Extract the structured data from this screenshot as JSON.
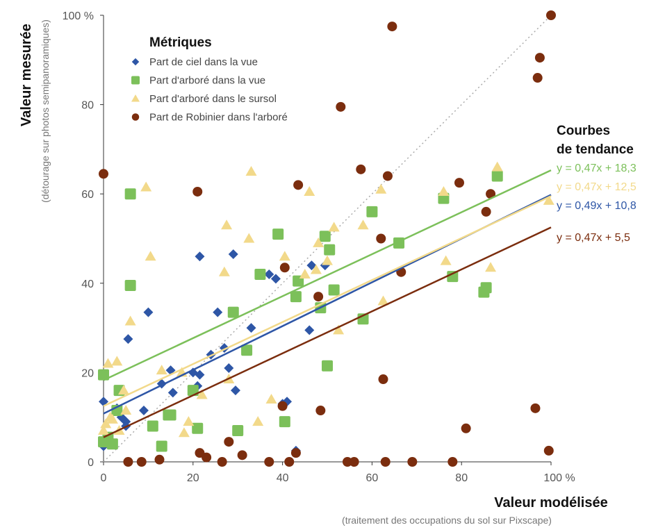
{
  "chart_data": {
    "type": "scatter",
    "xlabel": "Valeur modélisée",
    "xlabel_sub": "(traitement des occupations du sol sur Pixscape)",
    "ylabel": "Valeur mesurée",
    "ylabel_sub": "(détourage sur photos semipanoramiques)",
    "xlim": [
      0,
      100
    ],
    "ylim": [
      0,
      100
    ],
    "x_ticks": [
      "0",
      "20",
      "40",
      "60",
      "80",
      "100 %"
    ],
    "y_ticks": [
      "0",
      "20",
      "40",
      "60",
      "80",
      "100 %"
    ],
    "grid": false,
    "identity_line": true,
    "legend": {
      "title": "Métriques",
      "placement": "top-left"
    },
    "trend_title": [
      "Courbes",
      "de tendance"
    ],
    "series": [
      {
        "name": "Part de ciel dans la vue",
        "marker": "diamond",
        "color": "#2e56a6",
        "trend": {
          "label": "y = 0,49x + 10,8",
          "slope": 0.49,
          "intercept": 10.8
        },
        "points": [
          [
            0,
            3.5
          ],
          [
            0,
            13.5
          ],
          [
            1,
            5
          ],
          [
            3,
            12
          ],
          [
            4,
            10
          ],
          [
            5,
            9
          ],
          [
            5,
            8
          ],
          [
            5.5,
            27.5
          ],
          [
            9,
            11.5
          ],
          [
            10,
            33.5
          ],
          [
            13,
            17.5
          ],
          [
            15,
            20.5
          ],
          [
            15.5,
            15.5
          ],
          [
            20,
            20
          ],
          [
            21,
            17
          ],
          [
            21.5,
            19.5
          ],
          [
            21.5,
            46
          ],
          [
            24,
            24
          ],
          [
            25.5,
            33.5
          ],
          [
            27,
            25.5
          ],
          [
            28,
            21
          ],
          [
            29,
            46.5
          ],
          [
            29.5,
            16
          ],
          [
            33,
            30
          ],
          [
            37,
            42
          ],
          [
            38.5,
            41
          ],
          [
            40,
            13
          ],
          [
            41,
            13.5
          ],
          [
            43,
            2.5
          ],
          [
            46,
            29.5
          ],
          [
            46.5,
            44
          ],
          [
            49.5,
            44
          ]
        ]
      },
      {
        "name": "Part d'arboré dans la vue",
        "marker": "square",
        "color": "#7cc05a",
        "trend": {
          "label": "y = 0,47x + 18,3",
          "slope": 0.47,
          "intercept": 18.3
        },
        "points": [
          [
            0,
            4.5
          ],
          [
            0,
            19.5
          ],
          [
            1,
            5.5
          ],
          [
            2,
            4
          ],
          [
            3,
            11.5
          ],
          [
            3.5,
            16
          ],
          [
            6,
            60
          ],
          [
            6,
            39.5
          ],
          [
            11,
            8
          ],
          [
            13,
            3.5
          ],
          [
            14.5,
            10.5
          ],
          [
            15,
            10.5
          ],
          [
            20,
            16
          ],
          [
            21,
            7.5
          ],
          [
            29,
            33.5
          ],
          [
            30,
            7
          ],
          [
            32,
            25
          ],
          [
            35,
            42
          ],
          [
            39,
            51
          ],
          [
            40.5,
            9
          ],
          [
            43,
            37
          ],
          [
            43.5,
            40.5
          ],
          [
            48.5,
            34.5
          ],
          [
            49.5,
            50.5
          ],
          [
            50,
            21.5
          ],
          [
            50.5,
            47.5
          ],
          [
            51.5,
            38.5
          ],
          [
            58,
            32
          ],
          [
            60,
            56
          ],
          [
            66,
            49
          ],
          [
            76,
            59
          ],
          [
            78,
            41.5
          ],
          [
            85,
            38
          ],
          [
            85.5,
            39
          ],
          [
            88,
            64
          ]
        ]
      },
      {
        "name": "Part d'arboré dans le sursol",
        "marker": "triangle",
        "color": "#f2d98a",
        "trend": {
          "label": "y = 0,47x + 12,5",
          "slope": 0.47,
          "intercept": 12.5
        },
        "points": [
          [
            0,
            7
          ],
          [
            0.5,
            8.5
          ],
          [
            1,
            22
          ],
          [
            1.5,
            10
          ],
          [
            2,
            9.5
          ],
          [
            3,
            22.5
          ],
          [
            3.5,
            7
          ],
          [
            4.5,
            16
          ],
          [
            5,
            11.5
          ],
          [
            6,
            31.5
          ],
          [
            9.5,
            61.5
          ],
          [
            10.5,
            46
          ],
          [
            13,
            20.5
          ],
          [
            17.5,
            20
          ],
          [
            18,
            6.5
          ],
          [
            19,
            9
          ],
          [
            22,
            15
          ],
          [
            27,
            42.5
          ],
          [
            27.5,
            53
          ],
          [
            28,
            18.5
          ],
          [
            32.5,
            50
          ],
          [
            33,
            65
          ],
          [
            34.5,
            9
          ],
          [
            37.5,
            14
          ],
          [
            40.5,
            46
          ],
          [
            45,
            42
          ],
          [
            46,
            60.5
          ],
          [
            47.5,
            43
          ],
          [
            48,
            49
          ],
          [
            50,
            45
          ],
          [
            51.5,
            52.5
          ],
          [
            52.5,
            29.5
          ],
          [
            58,
            53
          ],
          [
            62,
            61
          ],
          [
            62.5,
            36
          ],
          [
            76,
            60.5
          ],
          [
            76.5,
            45
          ],
          [
            86.5,
            43.5
          ],
          [
            88,
            66
          ],
          [
            99.5,
            58.5
          ]
        ]
      },
      {
        "name": "Part de Robinier dans l'arboré",
        "marker": "circle",
        "color": "#7b2d0e",
        "trend": {
          "label": "y = 0,47x + 5,5",
          "slope": 0.47,
          "intercept": 5.5
        },
        "points": [
          [
            0,
            64.5
          ],
          [
            5.5,
            0
          ],
          [
            8.5,
            0
          ],
          [
            12.5,
            0.5
          ],
          [
            21,
            60.5
          ],
          [
            21.5,
            2
          ],
          [
            23,
            1
          ],
          [
            26.5,
            0
          ],
          [
            28,
            4.5
          ],
          [
            31,
            1.5
          ],
          [
            37,
            0
          ],
          [
            40,
            12.5
          ],
          [
            40.5,
            43.5
          ],
          [
            41.5,
            0
          ],
          [
            43,
            2
          ],
          [
            43.5,
            62
          ],
          [
            48,
            37
          ],
          [
            48.5,
            11.5
          ],
          [
            53,
            79.5
          ],
          [
            54.5,
            0
          ],
          [
            56,
            0
          ],
          [
            57.5,
            65.5
          ],
          [
            62,
            50
          ],
          [
            62.5,
            18.5
          ],
          [
            63,
            0
          ],
          [
            63.5,
            64
          ],
          [
            64.5,
            97.5
          ],
          [
            66.5,
            42.5
          ],
          [
            69,
            0
          ],
          [
            78,
            0
          ],
          [
            79.5,
            62.5
          ],
          [
            81,
            7.5
          ],
          [
            85.5,
            56
          ],
          [
            86.5,
            60
          ],
          [
            96.5,
            12
          ],
          [
            97,
            86
          ],
          [
            97.5,
            90.5
          ],
          [
            99.5,
            2.5
          ],
          [
            100,
            100
          ]
        ]
      }
    ]
  }
}
